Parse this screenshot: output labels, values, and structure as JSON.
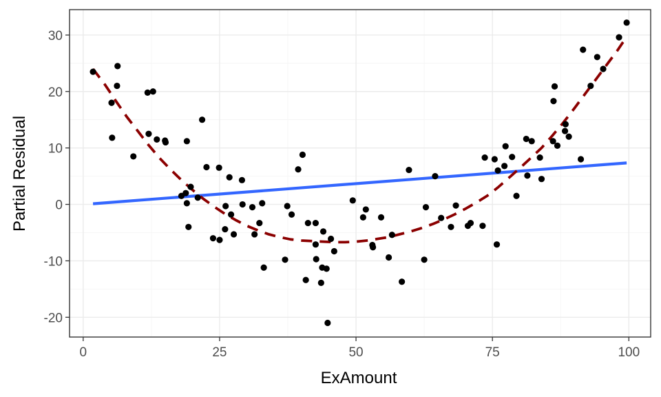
{
  "chart_data": {
    "type": "scatter",
    "xlabel": "ExAmount",
    "ylabel": "Partial Residual",
    "xlim": [
      -2.5,
      104
    ],
    "ylim": [
      -23.5,
      34.5
    ],
    "x_ticks": [
      0,
      25,
      50,
      75,
      100
    ],
    "y_ticks": [
      -20,
      -10,
      0,
      10,
      20,
      30
    ],
    "x_tick_labels": [
      "0",
      "25",
      "50",
      "75",
      "100"
    ],
    "y_tick_labels": [
      "-20",
      "-10",
      "0",
      "10",
      "20",
      "30"
    ],
    "grid": true,
    "theme": "bw",
    "series": [
      {
        "kind": "points",
        "color": "#000000",
        "points": [
          [
            1.8,
            23.5
          ],
          [
            5.2,
            18.0
          ],
          [
            5.3,
            11.8
          ],
          [
            6.2,
            21.0
          ],
          [
            6.3,
            24.5
          ],
          [
            9.2,
            8.5
          ],
          [
            11.8,
            19.8
          ],
          [
            12.0,
            12.5
          ],
          [
            12.8,
            20.0
          ],
          [
            13.5,
            11.5
          ],
          [
            15.0,
            11.3
          ],
          [
            15.1,
            11.0
          ],
          [
            18.0,
            1.5
          ],
          [
            18.8,
            2.0
          ],
          [
            19.0,
            0.2
          ],
          [
            19.0,
            11.2
          ],
          [
            19.3,
            -4.0
          ],
          [
            19.7,
            3.1
          ],
          [
            21.0,
            1.2
          ],
          [
            21.8,
            15.0
          ],
          [
            22.6,
            6.6
          ],
          [
            23.8,
            -6.0
          ],
          [
            24.9,
            6.5
          ],
          [
            25.0,
            -6.3
          ],
          [
            26.0,
            -4.4
          ],
          [
            26.1,
            -0.3
          ],
          [
            26.8,
            4.8
          ],
          [
            27.1,
            -1.8
          ],
          [
            27.6,
            -5.3
          ],
          [
            29.1,
            4.3
          ],
          [
            29.2,
            0.0
          ],
          [
            31.0,
            -0.5
          ],
          [
            31.4,
            -5.3
          ],
          [
            32.3,
            -3.3
          ],
          [
            32.8,
            0.2
          ],
          [
            33.1,
            -11.2
          ],
          [
            37.0,
            -9.8
          ],
          [
            37.4,
            -0.3
          ],
          [
            38.2,
            -1.8
          ],
          [
            39.4,
            6.2
          ],
          [
            40.2,
            8.8
          ],
          [
            40.8,
            -13.4
          ],
          [
            41.2,
            -3.3
          ],
          [
            42.6,
            -3.3
          ],
          [
            42.6,
            -7.1
          ],
          [
            42.7,
            -9.7
          ],
          [
            43.6,
            -13.9
          ],
          [
            43.8,
            -11.2
          ],
          [
            44.0,
            -4.8
          ],
          [
            44.6,
            -11.4
          ],
          [
            44.8,
            -21.0
          ],
          [
            45.4,
            -6.1
          ],
          [
            46.0,
            -8.3
          ],
          [
            49.4,
            0.7
          ],
          [
            51.3,
            -2.3
          ],
          [
            51.8,
            -0.9
          ],
          [
            53.0,
            -7.2
          ],
          [
            53.1,
            -7.6
          ],
          [
            54.6,
            -2.3
          ],
          [
            56.0,
            -9.4
          ],
          [
            56.6,
            -5.4
          ],
          [
            58.4,
            -13.7
          ],
          [
            59.7,
            6.1
          ],
          [
            62.5,
            -9.8
          ],
          [
            62.8,
            -0.5
          ],
          [
            64.5,
            5.0
          ],
          [
            65.6,
            -2.4
          ],
          [
            67.4,
            -4.0
          ],
          [
            68.3,
            -0.2
          ],
          [
            70.5,
            -3.8
          ],
          [
            71.0,
            -3.3
          ],
          [
            73.2,
            -3.8
          ],
          [
            73.6,
            8.3
          ],
          [
            75.4,
            8.0
          ],
          [
            75.8,
            -7.1
          ],
          [
            76.0,
            6.0
          ],
          [
            77.2,
            6.8
          ],
          [
            77.4,
            10.3
          ],
          [
            78.6,
            8.4
          ],
          [
            79.4,
            1.5
          ],
          [
            81.2,
            11.6
          ],
          [
            81.4,
            5.1
          ],
          [
            82.2,
            11.2
          ],
          [
            83.7,
            8.3
          ],
          [
            84.0,
            4.5
          ],
          [
            86.1,
            11.2
          ],
          [
            86.2,
            18.3
          ],
          [
            86.4,
            20.9
          ],
          [
            86.9,
            10.4
          ],
          [
            88.3,
            13.0
          ],
          [
            88.4,
            14.2
          ],
          [
            89.0,
            12.0
          ],
          [
            91.2,
            8.0
          ],
          [
            91.6,
            27.4
          ],
          [
            93.0,
            21.0
          ],
          [
            94.2,
            26.1
          ],
          [
            95.3,
            24.0
          ],
          [
            98.2,
            29.6
          ],
          [
            99.6,
            32.2
          ]
        ]
      },
      {
        "kind": "linear-fit",
        "color": "#3366ff",
        "style": "solid",
        "x_range": [
          1.8,
          99.6
        ],
        "intercept": -0.02,
        "slope": 0.074
      },
      {
        "kind": "smooth-fit",
        "color": "#8b0000",
        "style": "dashed",
        "points": [
          [
            1.8,
            24.0
          ],
          [
            4,
            21.2
          ],
          [
            6,
            18.3
          ],
          [
            8,
            15.5
          ],
          [
            10,
            13.0
          ],
          [
            12,
            10.5
          ],
          [
            14,
            8.2
          ],
          [
            16,
            6.2
          ],
          [
            18,
            4.3
          ],
          [
            20,
            2.6
          ],
          [
            22,
            1.0
          ],
          [
            24,
            -0.4
          ],
          [
            26,
            -1.7
          ],
          [
            28,
            -2.8
          ],
          [
            30,
            -3.8
          ],
          [
            32,
            -4.6
          ],
          [
            34,
            -5.3
          ],
          [
            36,
            -5.8
          ],
          [
            38,
            -6.2
          ],
          [
            40,
            -6.4
          ],
          [
            42,
            -6.5
          ],
          [
            44,
            -6.6
          ],
          [
            46,
            -6.7
          ],
          [
            48,
            -6.7
          ],
          [
            50,
            -6.6
          ],
          [
            52,
            -6.4
          ],
          [
            54,
            -6.1
          ],
          [
            56,
            -5.8
          ],
          [
            58,
            -5.3
          ],
          [
            60,
            -4.8
          ],
          [
            62,
            -4.2
          ],
          [
            64,
            -3.5
          ],
          [
            66,
            -2.7
          ],
          [
            68,
            -1.8
          ],
          [
            70,
            -0.8
          ],
          [
            72,
            0.3
          ],
          [
            74,
            1.5
          ],
          [
            76,
            3.0
          ],
          [
            78,
            4.7
          ],
          [
            80,
            6.4
          ],
          [
            82,
            8.2
          ],
          [
            84,
            10.0
          ],
          [
            86,
            12.2
          ],
          [
            88,
            14.5
          ],
          [
            90,
            17.0
          ],
          [
            92,
            19.6
          ],
          [
            94,
            22.2
          ],
          [
            96,
            24.8
          ],
          [
            98,
            27.4
          ],
          [
            99.6,
            29.7
          ]
        ]
      }
    ]
  }
}
